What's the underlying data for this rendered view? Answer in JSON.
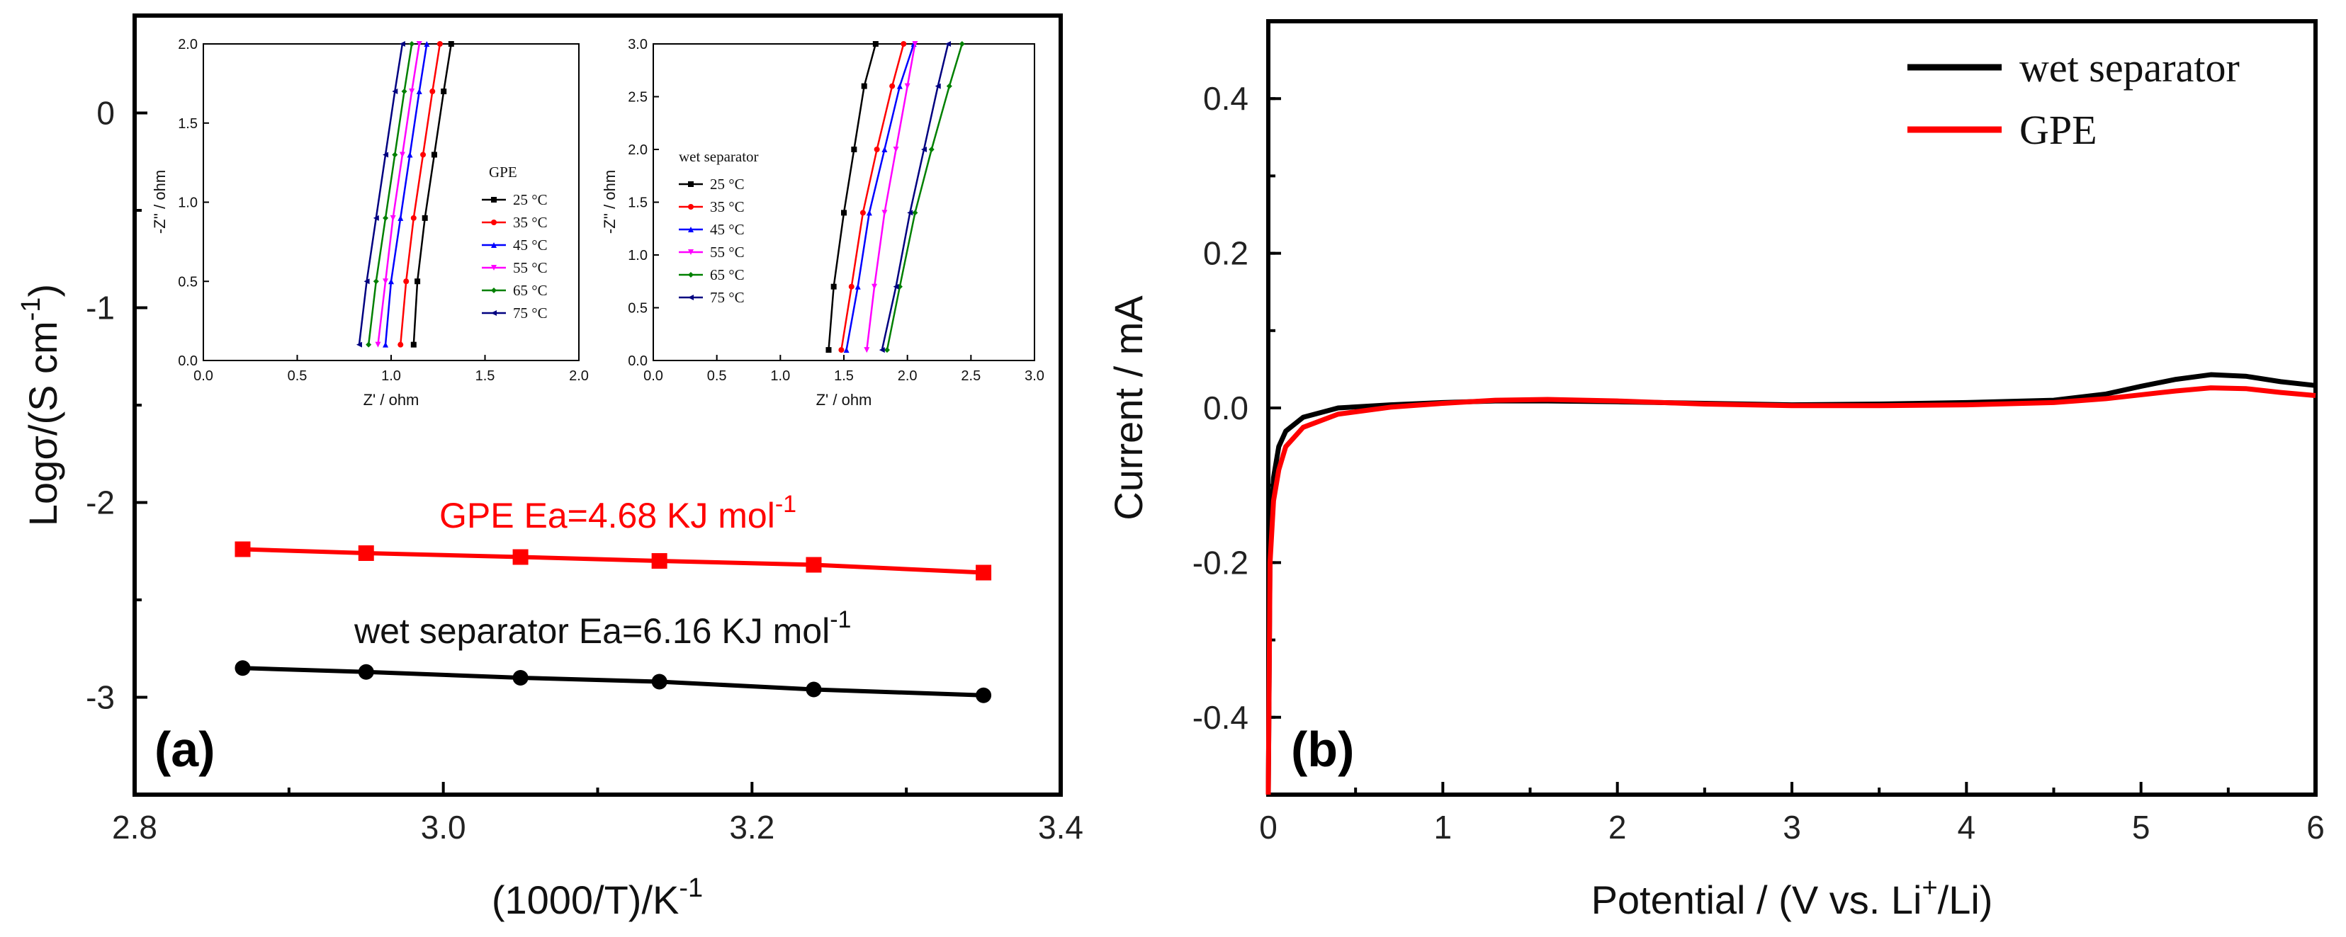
{
  "chart_data": [
    {
      "panel": "(a)",
      "type": "line",
      "xlabel": "(1000/T)/K",
      "xlabel_sup": "-1",
      "ylabel": "Logσ/(S cm",
      "ylabel_sup": "-1",
      "ylabel_end": ")",
      "xlim": [
        2.8,
        3.4
      ],
      "ylim": [
        -3.5,
        0.5
      ],
      "xticks": [
        2.8,
        3.0,
        3.2,
        3.4
      ],
      "xtick_labels": [
        "2.8",
        "3.0",
        "3.2",
        "3.4"
      ],
      "yticks": [
        0,
        -1,
        -2,
        -3
      ],
      "ytick_labels": [
        "0",
        "-1",
        "-2",
        "-3"
      ],
      "series": [
        {
          "name": "GPE",
          "color": "#ff0000",
          "marker": "square",
          "x": [
            2.87,
            2.95,
            3.05,
            3.14,
            3.24,
            3.35
          ],
          "y": [
            -2.24,
            -2.26,
            -2.28,
            -2.3,
            -2.32,
            -2.36
          ],
          "label": "GPE Ea=4.68 KJ mol",
          "label_sup": "-1"
        },
        {
          "name": "wet separator",
          "color": "#000000",
          "marker": "circle",
          "x": [
            2.87,
            2.95,
            3.05,
            3.14,
            3.24,
            3.35
          ],
          "y": [
            -2.85,
            -2.87,
            -2.9,
            -2.92,
            -2.96,
            -2.99
          ],
          "label": "wet separator Ea=6.16 KJ mol",
          "label_sup": "-1"
        }
      ],
      "insets": [
        {
          "type": "line",
          "xlabel": "Z' / ohm",
          "ylabel": "-Z'' / ohm",
          "xlim": [
            0,
            2.0
          ],
          "ylim": [
            0,
            2.0
          ],
          "xtick_labels": [
            "0.0",
            "0.5",
            "1.0",
            "1.5",
            "2.0"
          ],
          "ytick_labels": [
            "0.0",
            "0.5",
            "1.0",
            "1.5",
            "2.0"
          ],
          "legend_title": "GPE",
          "series": [
            {
              "name": "25 °C",
              "color": "#000000",
              "marker": "square",
              "x": [
                1.12,
                1.14,
                1.18,
                1.23,
                1.28,
                1.32
              ],
              "y": [
                0.1,
                0.5,
                0.9,
                1.3,
                1.7,
                2.0
              ]
            },
            {
              "name": "35 °C",
              "color": "#ff0000",
              "marker": "circle",
              "x": [
                1.05,
                1.08,
                1.12,
                1.17,
                1.22,
                1.26
              ],
              "y": [
                0.1,
                0.5,
                0.9,
                1.3,
                1.7,
                2.0
              ]
            },
            {
              "name": "45 °C",
              "color": "#0000ff",
              "marker": "triangle-up",
              "x": [
                0.97,
                1.0,
                1.05,
                1.1,
                1.15,
                1.19
              ],
              "y": [
                0.1,
                0.5,
                0.9,
                1.3,
                1.7,
                2.0
              ]
            },
            {
              "name": "55 °C",
              "color": "#ff00ff",
              "marker": "triangle-down",
              "x": [
                0.93,
                0.97,
                1.01,
                1.06,
                1.11,
                1.15
              ],
              "y": [
                0.1,
                0.5,
                0.9,
                1.3,
                1.7,
                2.0
              ]
            },
            {
              "name": "65 °C",
              "color": "#008000",
              "marker": "diamond",
              "x": [
                0.88,
                0.92,
                0.97,
                1.02,
                1.07,
                1.11
              ],
              "y": [
                0.1,
                0.5,
                0.9,
                1.3,
                1.7,
                2.0
              ]
            },
            {
              "name": "75 °C",
              "color": "#000080",
              "marker": "triangle-left",
              "x": [
                0.83,
                0.87,
                0.92,
                0.97,
                1.02,
                1.06
              ],
              "y": [
                0.1,
                0.5,
                0.9,
                1.3,
                1.7,
                2.0
              ]
            }
          ]
        },
        {
          "type": "line",
          "xlabel": "Z' / ohm",
          "ylabel": "-Z'' / ohm",
          "xlim": [
            0,
            3.0
          ],
          "ylim": [
            0,
            3.0
          ],
          "xtick_labels": [
            "0.0",
            "0.5",
            "1.0",
            "1.5",
            "2.0",
            "2.5",
            "3.0"
          ],
          "ytick_labels": [
            "0.0",
            "0.5",
            "1.0",
            "1.5",
            "2.0",
            "2.5",
            "3.0"
          ],
          "legend_title": "wet separator",
          "series": [
            {
              "name": "25 °C",
              "color": "#000000",
              "marker": "square",
              "x": [
                1.38,
                1.42,
                1.5,
                1.58,
                1.66,
                1.75
              ],
              "y": [
                0.1,
                0.7,
                1.4,
                2.0,
                2.6,
                3.0
              ]
            },
            {
              "name": "35 °C",
              "color": "#ff0000",
              "marker": "circle",
              "x": [
                1.48,
                1.56,
                1.65,
                1.76,
                1.88,
                1.97
              ],
              "y": [
                0.1,
                0.7,
                1.4,
                2.0,
                2.6,
                3.0
              ]
            },
            {
              "name": "45 °C",
              "color": "#0000ff",
              "marker": "triangle-up",
              "x": [
                1.52,
                1.61,
                1.7,
                1.82,
                1.94,
                2.05
              ],
              "y": [
                0.1,
                0.7,
                1.4,
                2.0,
                2.6,
                3.0
              ]
            },
            {
              "name": "55 °C",
              "color": "#ff00ff",
              "marker": "triangle-down",
              "x": [
                1.68,
                1.74,
                1.82,
                1.91,
                2.0,
                2.06
              ],
              "y": [
                0.1,
                0.7,
                1.4,
                2.0,
                2.6,
                3.0
              ]
            },
            {
              "name": "65 °C",
              "color": "#008000",
              "marker": "diamond",
              "x": [
                1.84,
                1.94,
                2.06,
                2.19,
                2.33,
                2.43
              ],
              "y": [
                0.1,
                0.7,
                1.4,
                2.0,
                2.6,
                3.0
              ]
            },
            {
              "name": "75 °C",
              "color": "#000080",
              "marker": "triangle-left",
              "x": [
                1.8,
                1.91,
                2.02,
                2.13,
                2.24,
                2.32
              ],
              "y": [
                0.1,
                0.7,
                1.4,
                2.0,
                2.6,
                3.0
              ]
            }
          ]
        }
      ]
    },
    {
      "panel": "(b)",
      "type": "line",
      "xlabel": "Potential / (V vs. Li",
      "xlabel_sup": "+",
      "xlabel_end": "/Li)",
      "ylabel": "Current / mA",
      "xlim": [
        0,
        6
      ],
      "ylim": [
        -0.5,
        0.5
      ],
      "xticks": [
        0,
        1,
        2,
        3,
        4,
        5,
        6
      ],
      "xtick_labels": [
        "0",
        "1",
        "2",
        "3",
        "4",
        "5",
        "6"
      ],
      "yticks": [
        -0.4,
        -0.2,
        0.0,
        0.2,
        0.4
      ],
      "ytick_labels": [
        "-0.4",
        "-0.2",
        "0.0",
        "0.2",
        "0.4"
      ],
      "series": [
        {
          "name": "wet separator",
          "color": "#000000",
          "x": [
            0.0,
            0.01,
            0.03,
            0.06,
            0.1,
            0.2,
            0.4,
            0.7,
            1.0,
            1.3,
            1.6,
            2.0,
            2.5,
            3.0,
            3.5,
            4.0,
            4.5,
            4.8,
            5.0,
            5.2,
            5.4,
            5.6,
            5.8,
            6.0
          ],
          "y": [
            -0.5,
            -0.18,
            -0.09,
            -0.05,
            -0.03,
            -0.012,
            0.0,
            0.004,
            0.007,
            0.009,
            0.009,
            0.008,
            0.006,
            0.004,
            0.005,
            0.007,
            0.01,
            0.018,
            0.028,
            0.037,
            0.043,
            0.041,
            0.034,
            0.029
          ]
        },
        {
          "name": "GPE",
          "color": "#ff0000",
          "x": [
            0.0,
            0.01,
            0.03,
            0.06,
            0.1,
            0.2,
            0.4,
            0.7,
            1.0,
            1.3,
            1.6,
            2.0,
            2.5,
            3.0,
            3.5,
            4.0,
            4.5,
            4.8,
            5.0,
            5.2,
            5.4,
            5.6,
            5.8,
            6.0
          ],
          "y": [
            -0.5,
            -0.2,
            -0.12,
            -0.08,
            -0.05,
            -0.025,
            -0.008,
            0.001,
            0.006,
            0.01,
            0.011,
            0.009,
            0.005,
            0.003,
            0.003,
            0.004,
            0.007,
            0.012,
            0.017,
            0.022,
            0.026,
            0.025,
            0.02,
            0.016
          ]
        }
      ]
    }
  ]
}
